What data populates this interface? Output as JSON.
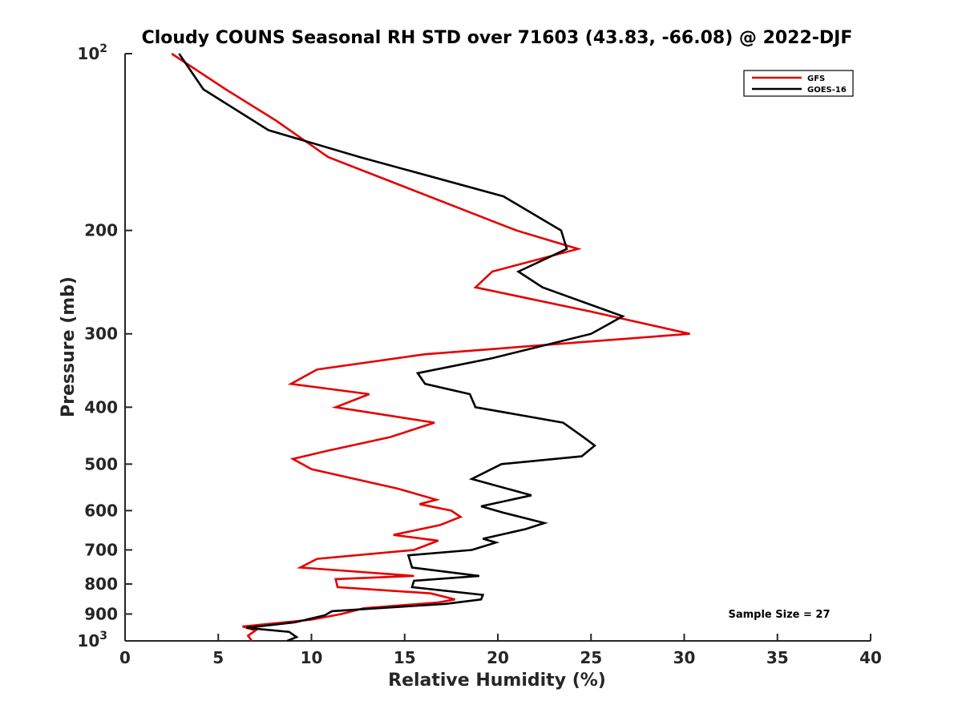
{
  "chart_data": {
    "type": "line",
    "title": "Cloudy COUNS Seasonal RH STD over 71603 (43.83, -66.08) @ 2022-DJF",
    "xlabel": "Relative Humidity (%)",
    "ylabel": "Pressure (mb)",
    "xlim": [
      0,
      40
    ],
    "ylim": [
      100,
      1000
    ],
    "yscale": "log",
    "y_reversed": true,
    "x_ticks": [
      0,
      5,
      10,
      15,
      20,
      25,
      30,
      35,
      40
    ],
    "x_tick_labels": [
      "0",
      "5",
      "10",
      "15",
      "20",
      "25",
      "30",
      "35",
      "40"
    ],
    "y_ticks": [
      {
        "value": 100,
        "base": "10",
        "exp": "2"
      },
      {
        "value": 200,
        "label": "200"
      },
      {
        "value": 300,
        "label": "300"
      },
      {
        "value": 400,
        "label": "400"
      },
      {
        "value": 500,
        "label": "500"
      },
      {
        "value": 600,
        "label": "600"
      },
      {
        "value": 700,
        "label": "700"
      },
      {
        "value": 800,
        "label": "800"
      },
      {
        "value": 900,
        "label": "900"
      },
      {
        "value": 1000,
        "base": "10",
        "exp": "3"
      }
    ],
    "legend": {
      "position": "top-right",
      "entries": [
        {
          "name": "GFS",
          "color": "#e50000"
        },
        {
          "name": "GOES-16",
          "color": "#000000"
        }
      ]
    },
    "annotation": "Sample Size = 27",
    "series": [
      {
        "name": "GFS",
        "color": "#e50000",
        "points": [
          {
            "rh": 2.5,
            "p": 100
          },
          {
            "rh": 5.4,
            "p": 115
          },
          {
            "rh": 8.1,
            "p": 130
          },
          {
            "rh": 10.9,
            "p": 150
          },
          {
            "rh": 21.0,
            "p": 200
          },
          {
            "rh": 24.3,
            "p": 215
          },
          {
            "rh": 19.7,
            "p": 235
          },
          {
            "rh": 18.8,
            "p": 250
          },
          {
            "rh": 25.0,
            "p": 275
          },
          {
            "rh": 30.3,
            "p": 300
          },
          {
            "rh": 16.1,
            "p": 325
          },
          {
            "rh": 10.3,
            "p": 345
          },
          {
            "rh": 8.9,
            "p": 365
          },
          {
            "rh": 13.1,
            "p": 380
          },
          {
            "rh": 11.3,
            "p": 400
          },
          {
            "rh": 16.6,
            "p": 425
          },
          {
            "rh": 14.2,
            "p": 450
          },
          {
            "rh": 10.8,
            "p": 475
          },
          {
            "rh": 9.0,
            "p": 490
          },
          {
            "rh": 10.0,
            "p": 510
          },
          {
            "rh": 14.6,
            "p": 550
          },
          {
            "rh": 16.7,
            "p": 575
          },
          {
            "rh": 15.8,
            "p": 585
          },
          {
            "rh": 17.5,
            "p": 600
          },
          {
            "rh": 18.0,
            "p": 615
          },
          {
            "rh": 16.9,
            "p": 635
          },
          {
            "rh": 14.4,
            "p": 660
          },
          {
            "rh": 16.8,
            "p": 675
          },
          {
            "rh": 15.5,
            "p": 700
          },
          {
            "rh": 10.3,
            "p": 725
          },
          {
            "rh": 9.4,
            "p": 750
          },
          {
            "rh": 15.5,
            "p": 775
          },
          {
            "rh": 11.3,
            "p": 785
          },
          {
            "rh": 11.4,
            "p": 810
          },
          {
            "rh": 16.4,
            "p": 830
          },
          {
            "rh": 17.7,
            "p": 850
          },
          {
            "rh": 16.8,
            "p": 860
          },
          {
            "rh": 12.8,
            "p": 880
          },
          {
            "rh": 11.6,
            "p": 900
          },
          {
            "rh": 10.0,
            "p": 920
          },
          {
            "rh": 6.3,
            "p": 945
          },
          {
            "rh": 7.0,
            "p": 960
          },
          {
            "rh": 6.6,
            "p": 980
          },
          {
            "rh": 6.8,
            "p": 1000
          }
        ]
      },
      {
        "name": "GOES-16",
        "color": "#000000",
        "points": [
          {
            "rh": 2.9,
            "p": 100
          },
          {
            "rh": 4.2,
            "p": 115
          },
          {
            "rh": 7.7,
            "p": 135
          },
          {
            "rh": 12.6,
            "p": 150
          },
          {
            "rh": 20.3,
            "p": 175
          },
          {
            "rh": 23.4,
            "p": 200
          },
          {
            "rh": 23.7,
            "p": 215
          },
          {
            "rh": 21.1,
            "p": 235
          },
          {
            "rh": 22.4,
            "p": 250
          },
          {
            "rh": 26.7,
            "p": 280
          },
          {
            "rh": 25.0,
            "p": 300
          },
          {
            "rh": 19.7,
            "p": 330
          },
          {
            "rh": 15.7,
            "p": 350
          },
          {
            "rh": 16.1,
            "p": 365
          },
          {
            "rh": 18.5,
            "p": 380
          },
          {
            "rh": 18.8,
            "p": 400
          },
          {
            "rh": 23.5,
            "p": 425
          },
          {
            "rh": 24.6,
            "p": 450
          },
          {
            "rh": 25.2,
            "p": 465
          },
          {
            "rh": 24.5,
            "p": 485
          },
          {
            "rh": 20.2,
            "p": 500
          },
          {
            "rh": 18.6,
            "p": 530
          },
          {
            "rh": 21.8,
            "p": 565
          },
          {
            "rh": 19.1,
            "p": 590
          },
          {
            "rh": 20.3,
            "p": 605
          },
          {
            "rh": 22.5,
            "p": 630
          },
          {
            "rh": 21.5,
            "p": 645
          },
          {
            "rh": 19.2,
            "p": 670
          },
          {
            "rh": 19.9,
            "p": 680
          },
          {
            "rh": 18.6,
            "p": 700
          },
          {
            "rh": 15.2,
            "p": 715
          },
          {
            "rh": 15.4,
            "p": 750
          },
          {
            "rh": 19.0,
            "p": 775
          },
          {
            "rh": 15.5,
            "p": 790
          },
          {
            "rh": 15.4,
            "p": 810
          },
          {
            "rh": 19.2,
            "p": 835
          },
          {
            "rh": 19.1,
            "p": 850
          },
          {
            "rh": 17.2,
            "p": 865
          },
          {
            "rh": 11.1,
            "p": 890
          },
          {
            "rh": 10.7,
            "p": 905
          },
          {
            "rh": 9.1,
            "p": 930
          },
          {
            "rh": 6.5,
            "p": 950
          },
          {
            "rh": 8.8,
            "p": 965
          },
          {
            "rh": 9.2,
            "p": 985
          },
          {
            "rh": 8.7,
            "p": 1000
          }
        ]
      }
    ]
  }
}
